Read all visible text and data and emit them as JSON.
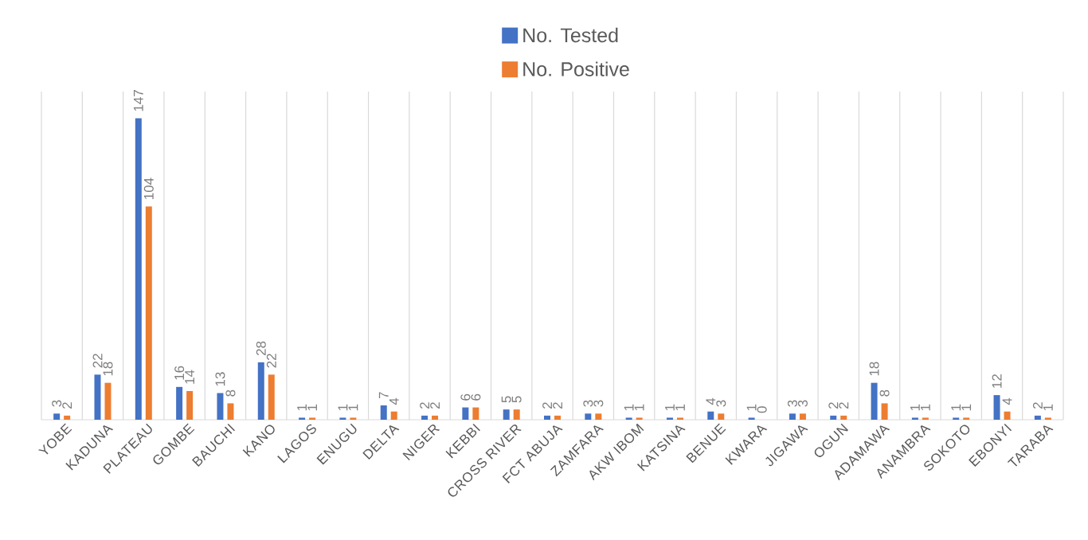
{
  "chart_data": {
    "type": "bar",
    "categories": [
      "YOBE",
      "KADUNA",
      "PLATEAU",
      "GOMBE",
      "BAUCHI",
      "KANO",
      "LAGOS",
      "ENUGU",
      "DELTA",
      "NIGER",
      "KEBBI",
      "CROSS RIVER",
      "FCT ABUJA",
      "ZAMFARA",
      "AKW IBOM",
      "KATSINA",
      "BENUE",
      "KWARA",
      "JIGAWA",
      "OGUN",
      "ADAMAWA",
      "ANAMBRA",
      "SOKOTO",
      "EBONYI",
      "TARABA"
    ],
    "series": [
      {
        "name": "No. Tested",
        "color": "#4472c4",
        "values": [
          3,
          22,
          147,
          16,
          13,
          28,
          1,
          1,
          7,
          2,
          6,
          5,
          2,
          3,
          1,
          1,
          4,
          1,
          3,
          2,
          18,
          1,
          1,
          12,
          2
        ]
      },
      {
        "name": "No. Positive",
        "color": "#ed7d31",
        "values": [
          2,
          18,
          104,
          14,
          8,
          22,
          1,
          1,
          4,
          2,
          6,
          5,
          2,
          3,
          1,
          1,
          3,
          0,
          3,
          2,
          8,
          1,
          1,
          4,
          1
        ]
      }
    ],
    "ylim": [
      0,
      160
    ],
    "data_labels": true,
    "grid": "x",
    "legend": "top",
    "tick_labels": "x"
  }
}
